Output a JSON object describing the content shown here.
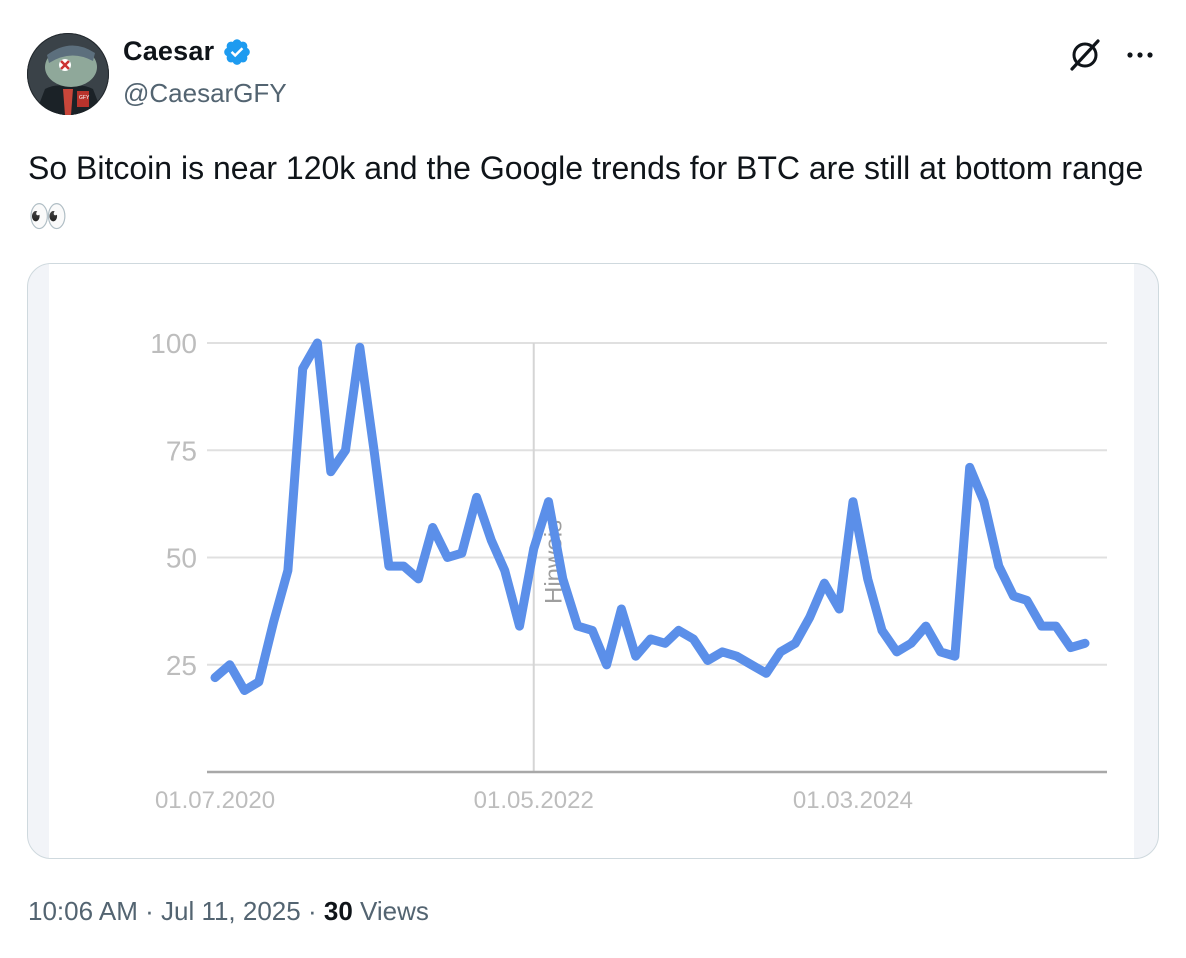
{
  "author": {
    "display_name": "Caesar",
    "handle": "@CaesarGFY",
    "verified_icon": "verified-badge-icon",
    "avatar_icon": "dinosaur-avatar"
  },
  "header_actions": {
    "grok_icon": "grok-icon",
    "more_icon": "more-icon"
  },
  "tweet": {
    "text": "So Bitcoin is near 120k and the Google trends for BTC are still at bottom range 👀"
  },
  "footer": {
    "time": "10:06 AM",
    "date": "Jul 11, 2025",
    "views_count": "30",
    "views_label": "Views"
  },
  "colors": {
    "line": "#5b8fe9",
    "grid": "#e0e0e0",
    "axis_text": "#bdbdbd",
    "verified": "#1d9bf0"
  },
  "chart_data": {
    "type": "line",
    "title": "",
    "xlabel": "",
    "ylabel": "",
    "ylim": [
      0,
      100
    ],
    "yticks": [
      "100",
      "75",
      "50",
      "25"
    ],
    "x_tick_labels": [
      "01.07.2020",
      "01.05.2022",
      "01.03.2024"
    ],
    "x_tick_dates": [
      "2020-07-01",
      "2022-05-01",
      "2024-03-01"
    ],
    "annotation": {
      "label": "Hinweis",
      "date": "2022-05-01"
    },
    "grid": true,
    "series": [
      {
        "points": [
          [
            "2020-07-01",
            22
          ],
          [
            "2020-08-01",
            25
          ],
          [
            "2020-09-01",
            19
          ],
          [
            "2020-10-01",
            21
          ],
          [
            "2020-11-01",
            35
          ],
          [
            "2020-12-01",
            47
          ],
          [
            "2021-01-01",
            94
          ],
          [
            "2021-02-01",
            100
          ],
          [
            "2021-03-01",
            70
          ],
          [
            "2021-04-01",
            75
          ],
          [
            "2021-05-01",
            99
          ],
          [
            "2021-06-01",
            74
          ],
          [
            "2021-07-01",
            48
          ],
          [
            "2021-08-01",
            48
          ],
          [
            "2021-09-01",
            45
          ],
          [
            "2021-10-01",
            57
          ],
          [
            "2021-11-01",
            50
          ],
          [
            "2021-12-01",
            51
          ],
          [
            "2022-01-01",
            64
          ],
          [
            "2022-02-01",
            54
          ],
          [
            "2022-03-01",
            47
          ],
          [
            "2022-04-01",
            34
          ],
          [
            "2022-05-01",
            52
          ],
          [
            "2022-06-01",
            63
          ],
          [
            "2022-07-01",
            45
          ],
          [
            "2022-08-01",
            34
          ],
          [
            "2022-09-01",
            33
          ],
          [
            "2022-10-01",
            25
          ],
          [
            "2022-11-01",
            38
          ],
          [
            "2022-12-01",
            27
          ],
          [
            "2023-01-01",
            31
          ],
          [
            "2023-02-01",
            30
          ],
          [
            "2023-03-01",
            33
          ],
          [
            "2023-04-01",
            31
          ],
          [
            "2023-05-01",
            26
          ],
          [
            "2023-06-01",
            28
          ],
          [
            "2023-07-01",
            27
          ],
          [
            "2023-08-01",
            25
          ],
          [
            "2023-09-01",
            23
          ],
          [
            "2023-10-01",
            28
          ],
          [
            "2023-11-01",
            30
          ],
          [
            "2023-12-01",
            36
          ],
          [
            "2024-01-01",
            44
          ],
          [
            "2024-02-01",
            38
          ],
          [
            "2024-03-01",
            63
          ],
          [
            "2024-04-01",
            45
          ],
          [
            "2024-05-01",
            33
          ],
          [
            "2024-06-01",
            28
          ],
          [
            "2024-07-01",
            30
          ],
          [
            "2024-08-01",
            34
          ],
          [
            "2024-09-01",
            28
          ],
          [
            "2024-10-01",
            27
          ],
          [
            "2024-11-01",
            71
          ],
          [
            "2024-12-01",
            63
          ],
          [
            "2025-01-01",
            48
          ],
          [
            "2025-02-01",
            41
          ],
          [
            "2025-03-01",
            40
          ],
          [
            "2025-04-01",
            34
          ],
          [
            "2025-05-01",
            34
          ],
          [
            "2025-06-01",
            29
          ],
          [
            "2025-07-01",
            30
          ]
        ]
      }
    ]
  }
}
